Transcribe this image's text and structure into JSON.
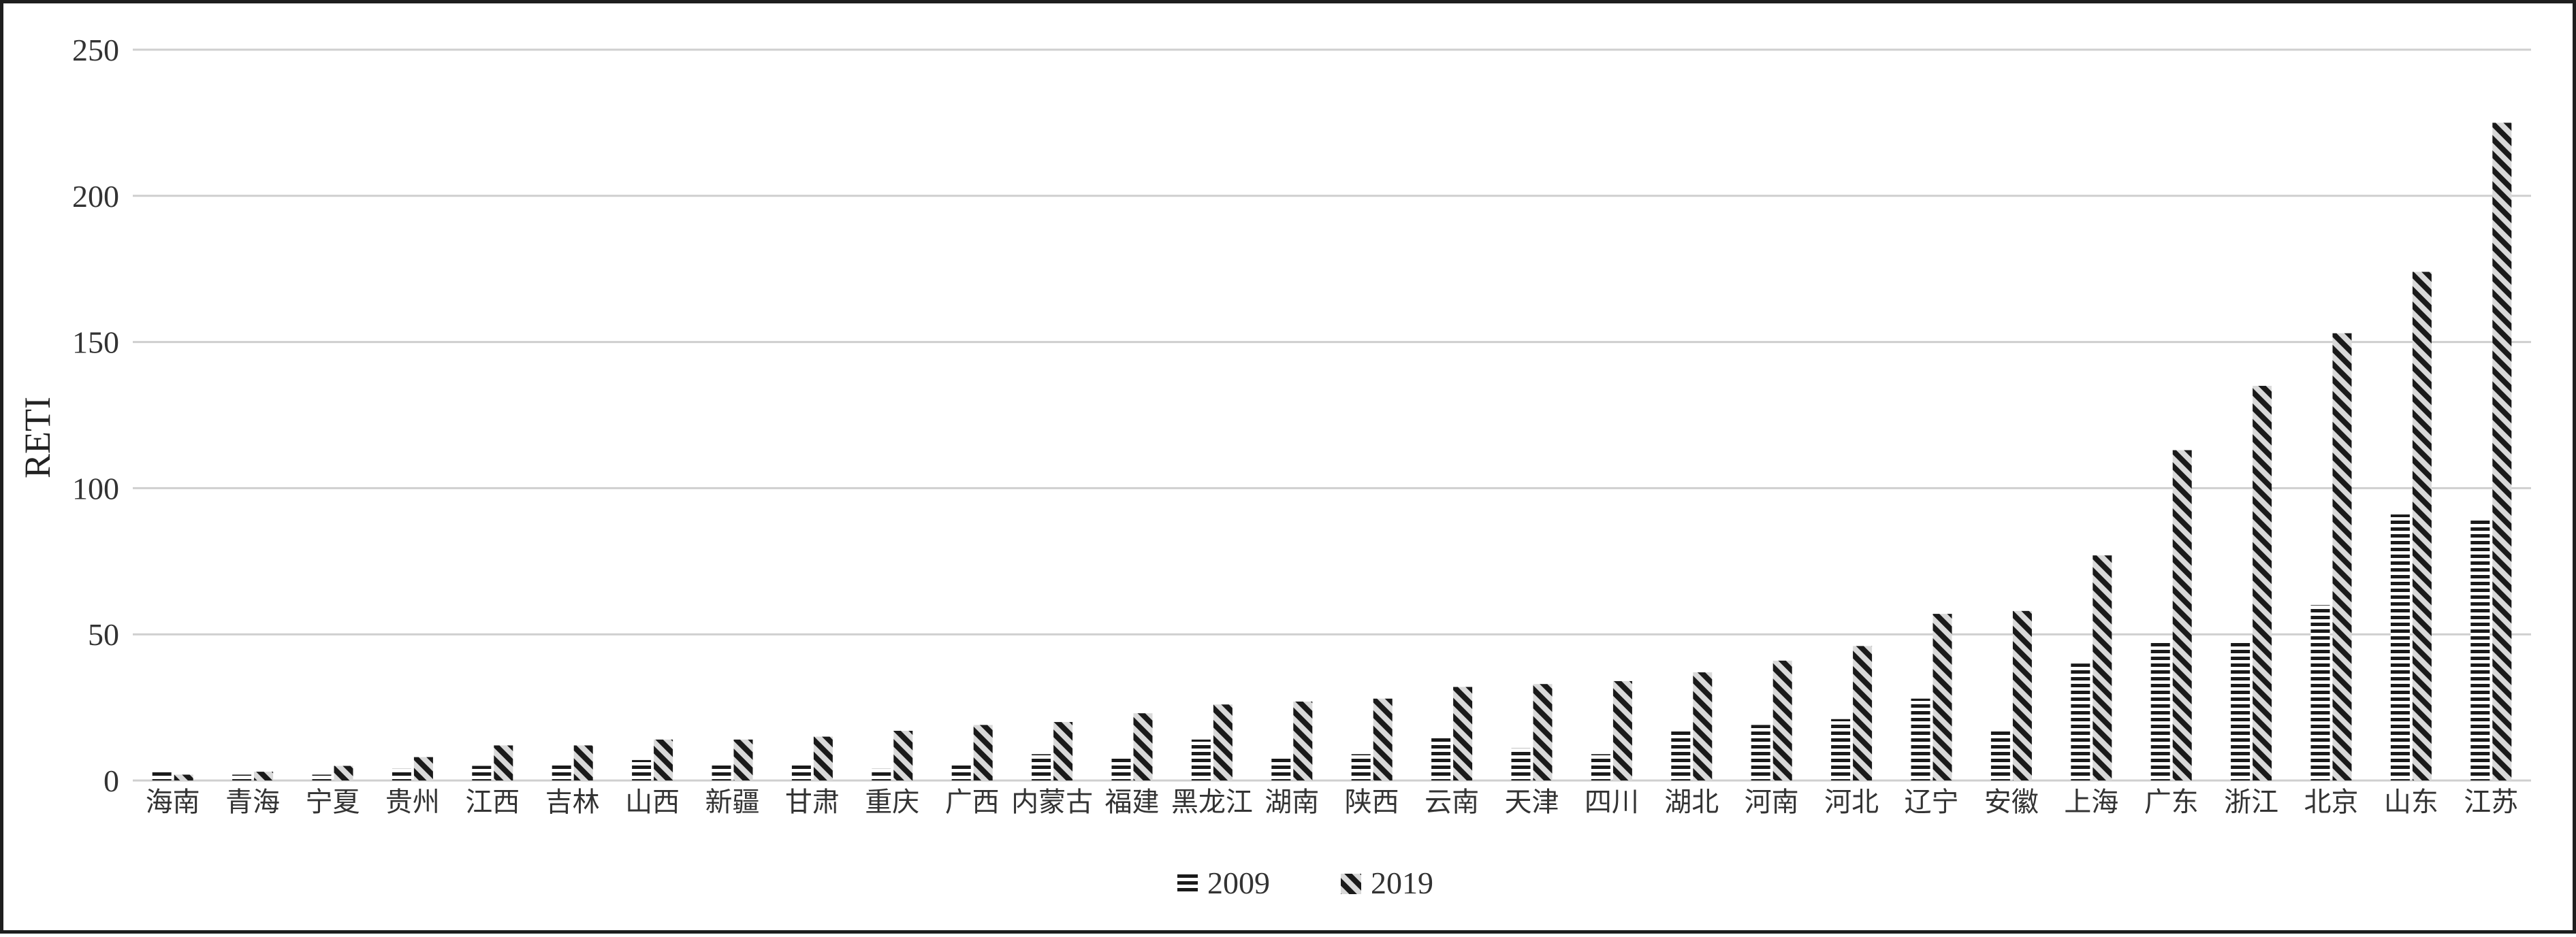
{
  "chart_data": {
    "type": "bar",
    "ylabel": "RETI",
    "ylim": [
      0,
      250
    ],
    "yticks": [
      0,
      50,
      100,
      150,
      200,
      250
    ],
    "grid": true,
    "legend_position": "bottom-center",
    "categories": [
      "海南",
      "青海",
      "宁夏",
      "贵州",
      "江西",
      "吉林",
      "山西",
      "新疆",
      "甘肃",
      "重庆",
      "广西",
      "内蒙古",
      "福建",
      "黑龙江",
      "湖南",
      "陕西",
      "云南",
      "天津",
      "四川",
      "湖北",
      "河南",
      "河北",
      "辽宁",
      "安徽",
      "上海",
      "广东",
      "浙江",
      "北京",
      "山东",
      "江苏"
    ],
    "series": [
      {
        "name": "2009",
        "pattern": "horizontal-stripes",
        "values": [
          3,
          2,
          2,
          4,
          5,
          6,
          7,
          6,
          6,
          4,
          6,
          9,
          8,
          14,
          8,
          9,
          15,
          11,
          9,
          17,
          19,
          21,
          28,
          17,
          40,
          48,
          48,
          60,
          91,
          89
        ]
      },
      {
        "name": "2019",
        "pattern": "diagonal-dashes",
        "values": [
          2,
          3,
          5,
          8,
          12,
          12,
          14,
          14,
          15,
          17,
          19,
          20,
          23,
          26,
          27,
          28,
          32,
          33,
          34,
          37,
          41,
          46,
          57,
          58,
          77,
          113,
          135,
          153,
          174,
          225
        ]
      }
    ]
  },
  "colors": {
    "bar_ink": "#1a1a1a",
    "bar_background": "#d9d9d9",
    "gridline": "#cfcfcf",
    "text": "#333333",
    "border": "#1e1e1e"
  }
}
